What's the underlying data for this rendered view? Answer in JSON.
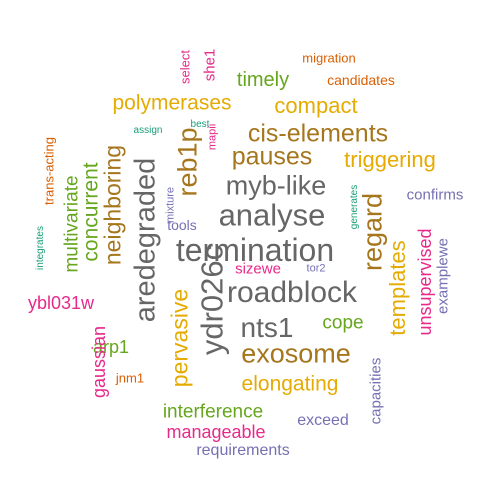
{
  "palette": {
    "teal": "#1b9e77",
    "orange": "#d95f02",
    "purple": "#7570b3",
    "magenta": "#e7298a",
    "green": "#66a61e",
    "gold": "#e6ab02",
    "brown": "#a6761d",
    "gray": "#666666"
  },
  "words": [
    {
      "text": "termination",
      "color": "gray"
    },
    {
      "text": "analyse",
      "color": "gray"
    },
    {
      "text": "myb-like",
      "color": "gray"
    },
    {
      "text": "roadblock",
      "color": "gray"
    },
    {
      "text": "nts1",
      "color": "gray"
    },
    {
      "text": "ydr026c",
      "color": "gray"
    },
    {
      "text": "aredegraded",
      "color": "gray"
    },
    {
      "text": "reb1p",
      "color": "brown"
    },
    {
      "text": "pauses",
      "color": "brown"
    },
    {
      "text": "cis-elements",
      "color": "brown"
    },
    {
      "text": "exosome",
      "color": "brown"
    },
    {
      "text": "regard",
      "color": "brown"
    },
    {
      "text": "neighboring",
      "color": "brown"
    },
    {
      "text": "compact",
      "color": "gold"
    },
    {
      "text": "polymerases",
      "color": "gold"
    },
    {
      "text": "triggering",
      "color": "gold"
    },
    {
      "text": "elongating",
      "color": "gold"
    },
    {
      "text": "templates",
      "color": "gold"
    },
    {
      "text": "pervasive",
      "color": "gold"
    },
    {
      "text": "timely",
      "color": "green"
    },
    {
      "text": "concurrent",
      "color": "green"
    },
    {
      "text": "multivariate",
      "color": "green"
    },
    {
      "text": "cope",
      "color": "green"
    },
    {
      "text": "arp1",
      "color": "green"
    },
    {
      "text": "interference",
      "color": "green"
    },
    {
      "text": "unsupervised",
      "color": "magenta"
    },
    {
      "text": "ybl031w",
      "color": "magenta"
    },
    {
      "text": "gaussian",
      "color": "magenta"
    },
    {
      "text": "manageable",
      "color": "magenta"
    },
    {
      "text": "she1",
      "color": "magenta"
    },
    {
      "text": "sizewe",
      "color": "magenta"
    },
    {
      "text": "mapii",
      "color": "magenta"
    },
    {
      "text": "select",
      "color": "magenta"
    },
    {
      "text": "migration",
      "color": "orange"
    },
    {
      "text": "candidates",
      "color": "orange"
    },
    {
      "text": "jnm1",
      "color": "orange"
    },
    {
      "text": "trans-acting",
      "color": "orange"
    },
    {
      "text": "confirms",
      "color": "purple"
    },
    {
      "text": "examplewe",
      "color": "purple"
    },
    {
      "text": "exceed",
      "color": "purple"
    },
    {
      "text": "capacities",
      "color": "purple"
    },
    {
      "text": "requirements",
      "color": "purple"
    },
    {
      "text": "tools",
      "color": "purple"
    },
    {
      "text": "tor2",
      "color": "purple"
    },
    {
      "text": "mixture",
      "color": "purple"
    },
    {
      "text": "assign",
      "color": "teal"
    },
    {
      "text": "best",
      "color": "teal"
    },
    {
      "text": "integrates",
      "color": "teal"
    },
    {
      "text": "generates",
      "color": "teal"
    }
  ]
}
